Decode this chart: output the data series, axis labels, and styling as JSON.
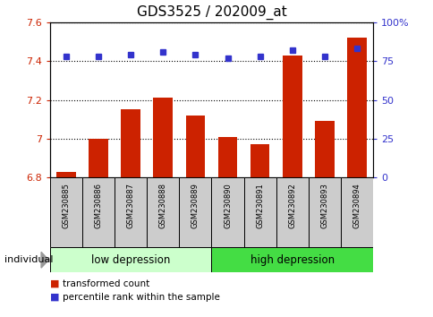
{
  "title": "GDS3525 / 202009_at",
  "samples": [
    "GSM230885",
    "GSM230886",
    "GSM230887",
    "GSM230888",
    "GSM230889",
    "GSM230890",
    "GSM230891",
    "GSM230892",
    "GSM230893",
    "GSM230894"
  ],
  "red_values": [
    6.83,
    7.0,
    7.15,
    7.21,
    7.12,
    7.01,
    6.97,
    7.43,
    7.09,
    7.52
  ],
  "blue_values": [
    78,
    78,
    79,
    81,
    79,
    77,
    78,
    82,
    78,
    83
  ],
  "ylim_left": [
    6.8,
    7.6
  ],
  "ylim_right": [
    0,
    100
  ],
  "yticks_left": [
    6.8,
    7.0,
    7.2,
    7.4,
    7.6
  ],
  "ytick_labels_left": [
    "6.8",
    "7",
    "7.2",
    "7.4",
    "7.6"
  ],
  "yticks_right": [
    0,
    25,
    50,
    75,
    100
  ],
  "ytick_labels_right": [
    "0",
    "25",
    "50",
    "75",
    "100%"
  ],
  "group1_label": "low depression",
  "group2_label": "high depression",
  "group1_indices": [
    0,
    1,
    2,
    3,
    4
  ],
  "group2_indices": [
    5,
    6,
    7,
    8,
    9
  ],
  "legend_red": "transformed count",
  "legend_blue": "percentile rank within the sample",
  "individual_label": "individual",
  "bar_color": "#cc2200",
  "blue_color": "#3333cc",
  "group1_bg": "#ccffcc",
  "group2_bg": "#44dd44",
  "sample_bg": "#cccccc",
  "title_fontsize": 11,
  "tick_fontsize": 8,
  "bar_width": 0.6
}
